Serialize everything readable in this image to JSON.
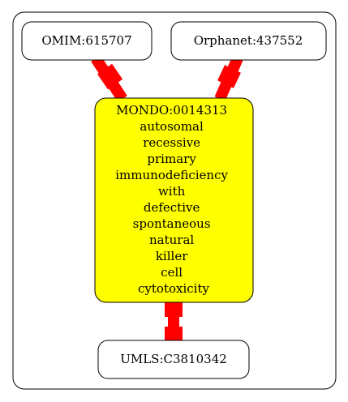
{
  "colors": {
    "background": "#ffffff",
    "outline": "#000000",
    "edge": "#ff0000",
    "central_fill": "#ffff00",
    "node_fill": "#ffffff"
  },
  "graph": {
    "nodes": {
      "omim": {
        "label": "OMIM:615707"
      },
      "orphanet": {
        "label": "Orphanet:437552"
      },
      "mondo": {
        "lines": [
          "MONDO:0014313",
          "autosomal",
          "recessive",
          "primary",
          "immunodeficiency",
          "with",
          "defective",
          "spontaneous",
          "natural",
          "killer",
          "cell",
          "cytotoxicity"
        ]
      },
      "umls": {
        "label": "UMLS:C3810342"
      }
    },
    "edges": [
      {
        "from": "omim",
        "to": "mondo"
      },
      {
        "from": "orphanet",
        "to": "mondo"
      },
      {
        "from": "mondo",
        "to": "umls"
      }
    ]
  }
}
